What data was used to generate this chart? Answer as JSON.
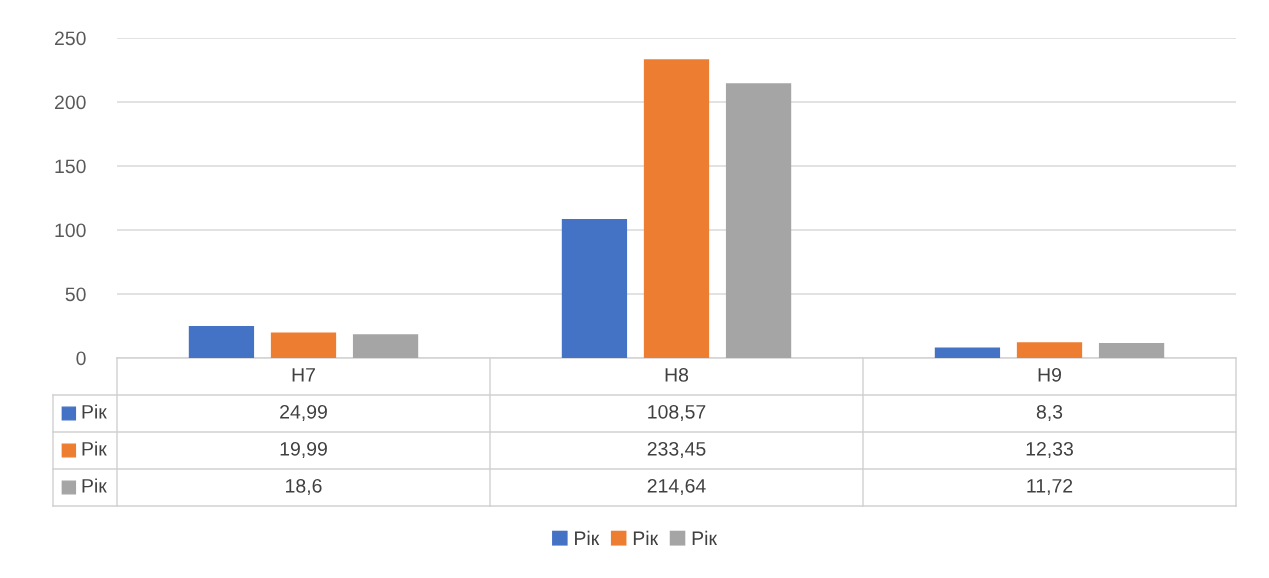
{
  "chart_data": {
    "type": "bar",
    "categories": [
      "Н7",
      "Н8",
      "Н9"
    ],
    "series": [
      {
        "name": "Рік",
        "color": "#4472c4",
        "values": [
          24.99,
          108.57,
          8.3
        ],
        "value_labels": [
          "24,99",
          "108,57",
          "8,3"
        ]
      },
      {
        "name": "Рік",
        "color": "#ed7d31",
        "values": [
          19.99,
          233.45,
          12.33
        ],
        "value_labels": [
          "19,99",
          "233,45",
          "12,33"
        ]
      },
      {
        "name": "Рік",
        "color": "#a5a5a5",
        "values": [
          18.6,
          214.64,
          11.72
        ],
        "value_labels": [
          "18,6",
          "214,64",
          "11,72"
        ]
      }
    ],
    "ylim": [
      0,
      250
    ],
    "yticks": [
      0,
      50,
      100,
      150,
      200,
      250
    ],
    "grid": "y",
    "legend": "bottom"
  }
}
